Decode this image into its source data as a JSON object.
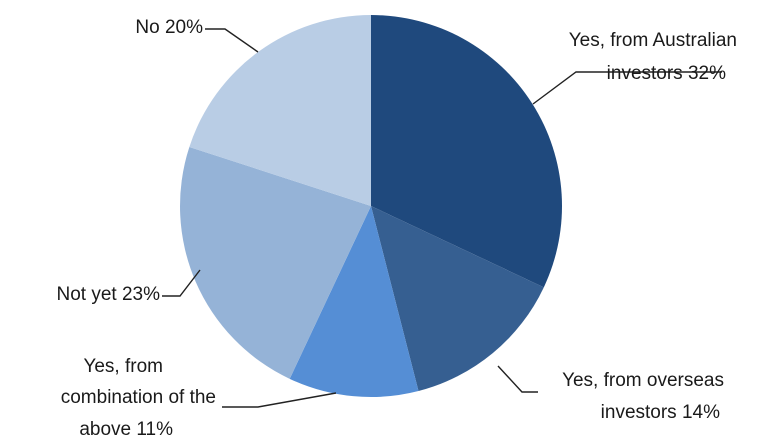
{
  "chart_data": {
    "type": "pie",
    "categories": [
      "Yes, from Australian investors",
      "Yes, from overseas investors",
      "Yes, from combination of the above",
      "Not yet",
      "No"
    ],
    "values": [
      32,
      14,
      11,
      23,
      20
    ],
    "colors": [
      "#1f497d",
      "#365f91",
      "#558ed5",
      "#95b3d7",
      "#b9cde5"
    ],
    "labels": [
      [
        "Yes, from Australian",
        "investors 32%"
      ],
      [
        "Yes, from overseas",
        "investors 14%"
      ],
      [
        "Yes, from",
        "combination of the",
        "above 11%"
      ],
      [
        "Not yet 23%"
      ],
      [
        "No 20%"
      ]
    ],
    "start_angle": "12 o'clock",
    "direction": "clockwise"
  }
}
